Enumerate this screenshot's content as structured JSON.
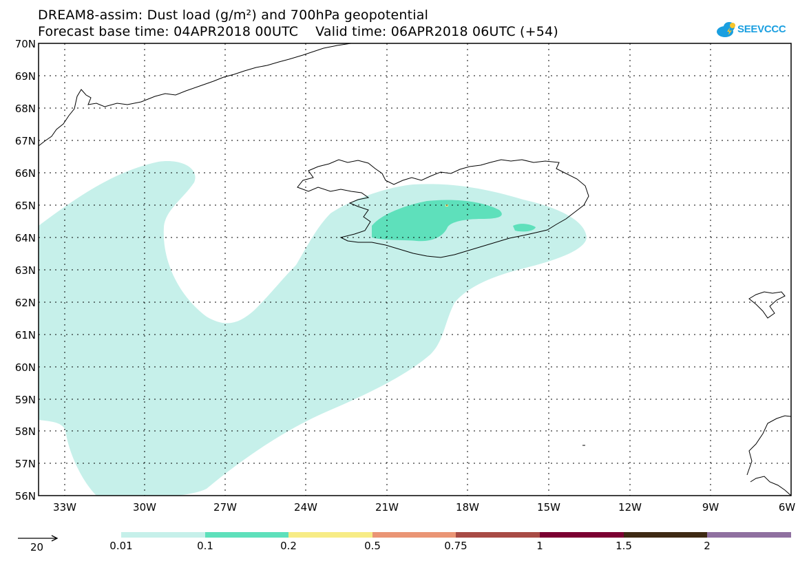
{
  "title": {
    "line1": "DREAM8-assim: Dust load (g/m²) and 700hPa geopotential",
    "line2": "Forecast base time: 04APR2018 00UTC    Valid time: 06APR2018 06UTC (+54)"
  },
  "logo": {
    "text": "SEEVCCC",
    "icon": "cloud-sun-icon",
    "color": "#1a9fe0"
  },
  "axes": {
    "lat_labels": [
      "70N",
      "69N",
      "68N",
      "67N",
      "66N",
      "65N",
      "64N",
      "63N",
      "62N",
      "61N",
      "60N",
      "59N",
      "58N",
      "57N",
      "56N"
    ],
    "lon_labels": [
      "33W",
      "30W",
      "27W",
      "24W",
      "21W",
      "18W",
      "15W",
      "12W",
      "9W",
      "6W"
    ]
  },
  "legend": {
    "vector_reference": "20",
    "levels": [
      "0.01",
      "0.1",
      "0.2",
      "0.5",
      "0.75",
      "1",
      "1.5",
      "2"
    ],
    "colors": [
      "#c6f0ea",
      "#5ee0bb",
      "#f7ec86",
      "#ea9575",
      "#a84b45",
      "#7b0032",
      "#3e2a14",
      "#8f70a0"
    ]
  },
  "features": {
    "land_color": "#ffffff",
    "coastline_color": "#000000",
    "grid": "dotted"
  }
}
